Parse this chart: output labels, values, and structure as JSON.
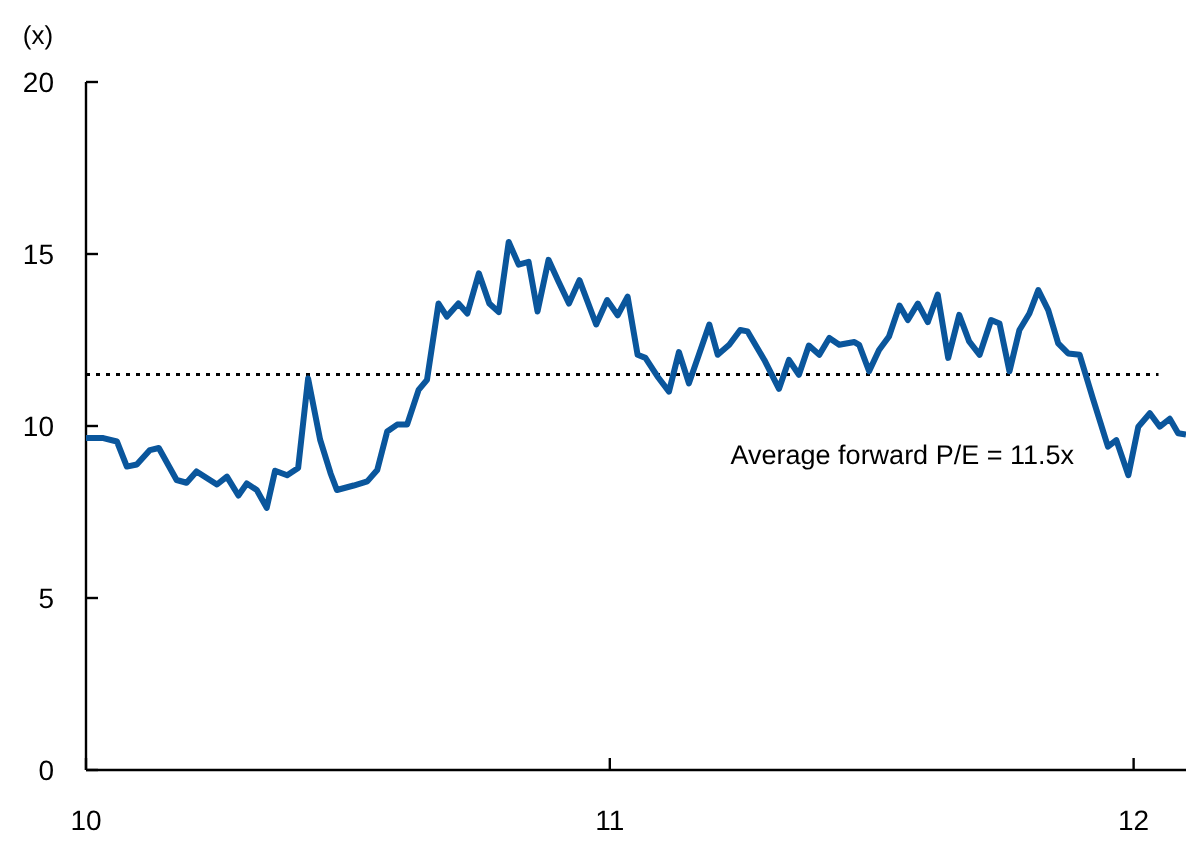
{
  "chart_data": {
    "type": "line",
    "ylabel": "(x)",
    "x": [
      10.0,
      10.033,
      10.059,
      10.078,
      10.097,
      10.122,
      10.139,
      10.173,
      10.192,
      10.211,
      10.25,
      10.269,
      10.291,
      10.307,
      10.326,
      10.345,
      10.361,
      10.384,
      10.405,
      10.424,
      10.447,
      10.467,
      10.479,
      10.511,
      10.537,
      10.556,
      10.575,
      10.594,
      10.613,
      10.635,
      10.651,
      10.673,
      10.689,
      10.711,
      10.728,
      10.75,
      10.77,
      10.788,
      10.807,
      10.826,
      10.845,
      10.862,
      10.883,
      10.902,
      10.922,
      10.942,
      10.974,
      10.995,
      11.015,
      11.034,
      11.053,
      11.068,
      11.091,
      11.113,
      11.132,
      11.151,
      11.17,
      11.19,
      11.206,
      11.228,
      11.249,
      11.263,
      11.295,
      11.323,
      11.342,
      11.361,
      11.38,
      11.4,
      11.419,
      11.438,
      11.467,
      11.476,
      11.495,
      11.514,
      11.533,
      11.553,
      11.569,
      11.588,
      11.607,
      11.626,
      11.646,
      11.667,
      11.686,
      11.706,
      11.728,
      11.744,
      11.763,
      11.782,
      11.801,
      11.818,
      11.837,
      11.856,
      11.875,
      11.897,
      11.922,
      11.951,
      11.967,
      11.99,
      12.009,
      12.031,
      12.05,
      12.069,
      12.085,
      12.1
    ],
    "series": [
      {
        "color": "#0a569c",
        "values": [
          9.65,
          9.65,
          9.55,
          8.82,
          8.88,
          9.3,
          9.36,
          8.43,
          8.35,
          8.68,
          8.3,
          8.53,
          7.98,
          8.33,
          8.14,
          7.62,
          8.7,
          8.57,
          8.78,
          11.38,
          9.6,
          8.62,
          8.14,
          8.27,
          8.39,
          8.72,
          9.84,
          10.04,
          10.04,
          11.05,
          11.34,
          13.56,
          13.18,
          13.56,
          13.27,
          14.44,
          13.56,
          13.31,
          15.35,
          14.69,
          14.77,
          13.33,
          14.83,
          14.2,
          13.56,
          14.24,
          12.95,
          13.66,
          13.22,
          13.76,
          12.07,
          11.98,
          11.44,
          11.0,
          12.15,
          11.24,
          12.07,
          12.95,
          12.07,
          12.36,
          12.79,
          12.75,
          11.92,
          11.08,
          11.92,
          11.49,
          12.34,
          12.07,
          12.56,
          12.36,
          12.44,
          12.36,
          11.59,
          12.21,
          12.6,
          13.5,
          13.08,
          13.56,
          13.02,
          13.82,
          11.98,
          13.23,
          12.46,
          12.07,
          13.08,
          12.98,
          11.59,
          12.79,
          13.27,
          13.95,
          13.37,
          12.4,
          12.11,
          12.07,
          10.81,
          9.4,
          9.59,
          8.57,
          9.98,
          10.37,
          9.98,
          10.21,
          9.79,
          9.75
        ]
      }
    ],
    "xlim": [
      10,
      12.1
    ],
    "xticks": [
      10,
      11,
      12
    ],
    "ylim": [
      0,
      20
    ],
    "yticks": [
      0,
      5,
      10,
      15,
      20
    ],
    "ref_lines": [
      {
        "axis": "y",
        "value": 11.5,
        "label": "Average forward P/E = 11.5x",
        "color": "#000000",
        "line_style": "dotted"
      }
    ],
    "grid": false,
    "marker": "none",
    "line_style": "solid"
  }
}
